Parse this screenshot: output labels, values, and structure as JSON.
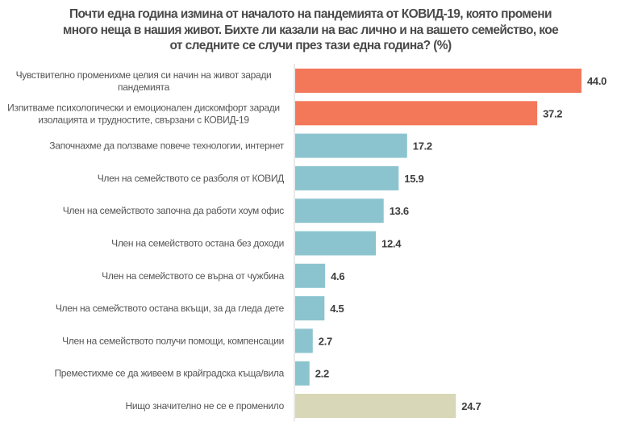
{
  "chart_data": {
    "type": "bar",
    "orientation": "horizontal",
    "title_lines": [
      "Почти една година измина от началото на пандемията от КОВИД-19, която промени",
      "много неща в нашия живот. Бихте ли казали на вас лично и на вашето семейство, кое",
      "от следните се случи през тази една година? (%)"
    ],
    "xlabel": "",
    "ylabel": "",
    "xlim": [
      0,
      44
    ],
    "grid": false,
    "legend": "none",
    "categories": [
      [
        "Чувствително  променихме целия си начин на живот заради",
        "пандемията"
      ],
      [
        "Изпитваме  психологически  и емоционален  дискомфорт  заради",
        "изолацията  и трудностите,  свързани  с КОВИД-19"
      ],
      [
        "Започнахме  да ползваме повече  технологии,  интернет"
      ],
      [
        "Член на семейството  се разболя  от КОВИД"
      ],
      [
        "Член на семейството  започна да работи  хоум  офис"
      ],
      [
        "Член на семейството  остана  без  доходи"
      ],
      [
        "Член на семейството  се върна  от чужбина"
      ],
      [
        "Член на семейството  остана  вкъщи,  за да гледа дете"
      ],
      [
        "Член на семейството  получи  помощи,  компенсации"
      ],
      [
        "Преместихме  се да живеем  в крайградска  къща/вила"
      ],
      [
        "Нищо значително не се е променило"
      ]
    ],
    "values": [
      44.0,
      37.2,
      17.2,
      15.9,
      13.6,
      12.4,
      4.6,
      4.5,
      2.7,
      2.2,
      24.7
    ],
    "value_labels": [
      "44.0",
      "37.2",
      "17.2",
      "15.9",
      "13.6",
      "12.4",
      "4.6",
      "4.5",
      "2.7",
      "2.2",
      "24.7"
    ],
    "bar_groups": [
      "top",
      "top",
      "mid",
      "mid",
      "mid",
      "mid",
      "mid",
      "mid",
      "mid",
      "mid",
      "none"
    ],
    "colors": {
      "top": "#F3785A",
      "mid": "#8BC4CF",
      "none": "#D8D7B8",
      "axis": "#e2e2e2"
    }
  }
}
